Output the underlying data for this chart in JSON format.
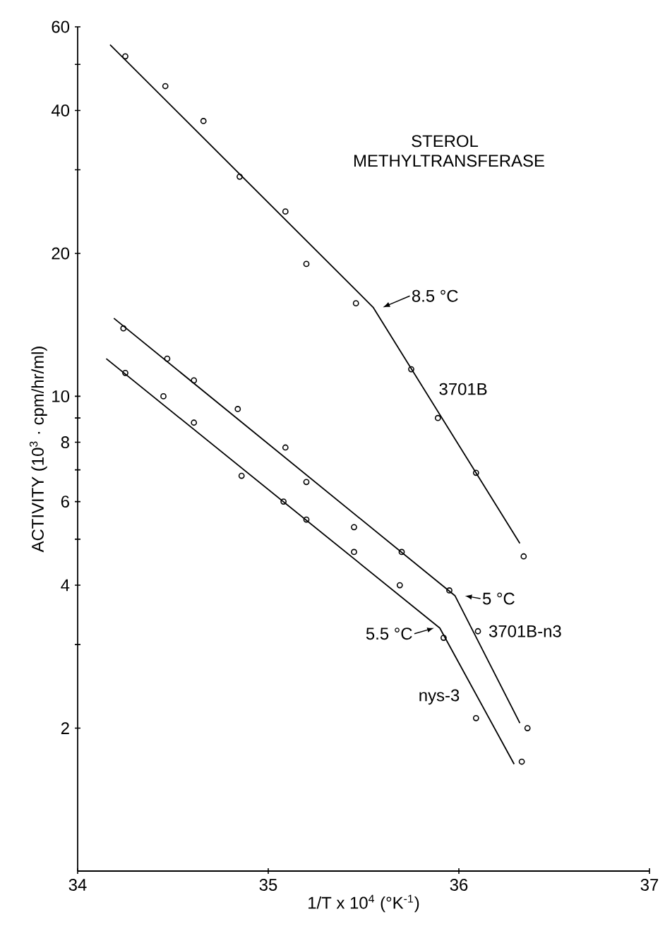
{
  "chart_data": {
    "type": "scatter",
    "title": "STEROL METHYLTRANSFERASE",
    "xlabel": "1/T x 10$^{4}$ (°K$^{-1}$)",
    "ylabel": "ACTIVITY (10$^{3}$ · cpm/hr/ml)",
    "log": "y",
    "xlim": [
      34,
      37
    ],
    "ylim": [
      1,
      60
    ],
    "xticks": [
      34,
      35,
      36,
      37
    ],
    "yticks": [
      2,
      {
        "value": 3,
        "label": null
      },
      4,
      {
        "value": 5,
        "label": null
      },
      6,
      {
        "value": 7,
        "label": null
      },
      8,
      {
        "value": 9,
        "label": null
      },
      10,
      20,
      {
        "value": 30,
        "label": null
      },
      40,
      {
        "value": 50,
        "label": null
      },
      60
    ],
    "series": [
      {
        "name": "3701B",
        "marker": "circle",
        "color": "#000000",
        "x": [
          34.25,
          34.46,
          34.66,
          34.85,
          35.09,
          35.2,
          35.46,
          35.75,
          35.89,
          36.09,
          36.34
        ],
        "values": [
          52,
          45,
          38,
          29,
          24.5,
          19,
          15.7,
          11.4,
          9,
          6.9,
          4.6
        ]
      },
      {
        "name": "3701B-n3",
        "marker": "circle",
        "color": "#000000",
        "x": [
          34.24,
          34.47,
          34.61,
          34.84,
          35.09,
          35.2,
          35.45,
          35.7,
          35.95,
          36.1,
          36.36
        ],
        "values": [
          13.9,
          12,
          10.8,
          9.4,
          7.8,
          6.6,
          5.3,
          4.7,
          3.9,
          3.2,
          2
        ]
      },
      {
        "name": "nys-3",
        "marker": "circle",
        "color": "#000000",
        "x": [
          34.25,
          34.45,
          34.61,
          34.86,
          35.08,
          35.2,
          35.45,
          35.69,
          35.92,
          36.09,
          36.33
        ],
        "values": [
          11.2,
          10,
          8.8,
          6.8,
          6,
          5.5,
          4.7,
          4,
          3.1,
          2.1,
          1.7
        ]
      },
      {
        "type": "line",
        "marker": "none",
        "line_style": "solid",
        "color": "#000000",
        "x": [
          34.17,
          35.55,
          36.32
        ],
        "values": [
          55,
          15.4,
          4.9
        ]
      },
      {
        "type": "line",
        "marker": "none",
        "line_style": "solid",
        "color": "#000000",
        "x": [
          34.19,
          35.98,
          36.32
        ],
        "values": [
          14.6,
          3.8,
          2.05
        ]
      },
      {
        "type": "line",
        "marker": "none",
        "line_style": "solid",
        "color": "#000000",
        "x": [
          34.15,
          35.9,
          36.29
        ],
        "values": [
          12,
          3.25,
          1.68
        ]
      }
    ],
    "annotations": [
      {
        "text": "8.5 °C",
        "x": 35.55,
        "y": 15.4
      },
      {
        "text": "5 °C",
        "x": 35.98,
        "y": 3.8
      },
      {
        "text": "5.5 °C",
        "x": 35.9,
        "y": 3.25
      }
    ]
  }
}
